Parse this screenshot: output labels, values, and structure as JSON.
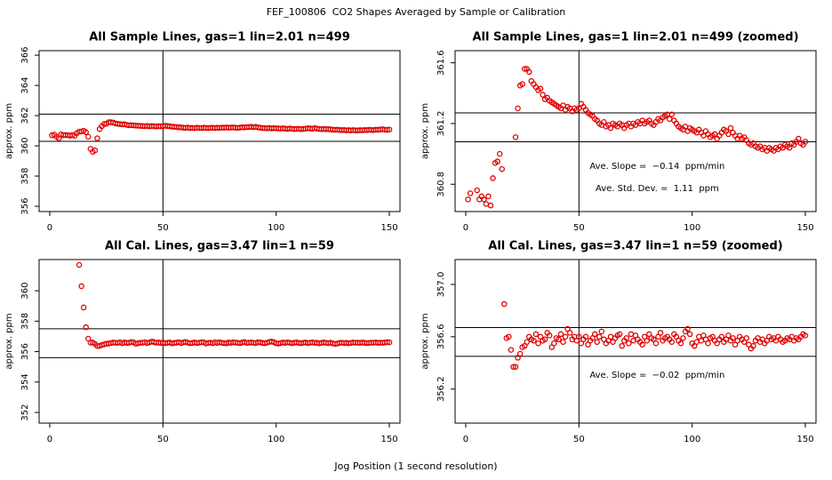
{
  "title": "FEF_100806  CO2 Shapes Averaged by Sample or Calibration",
  "xlabel": "Jog Position (1 second resolution)",
  "chart_data": [
    {
      "type": "scatter",
      "color": "#e00000",
      "xlim": [
        -4.7,
        154.7
      ],
      "xticks": [
        0,
        50,
        100,
        150
      ],
      "vline": 50,
      "x": [
        1,
        2,
        3,
        4,
        5,
        6,
        7,
        8,
        9,
        10,
        11,
        12,
        13,
        14,
        15,
        16,
        17,
        18,
        19,
        20,
        21,
        22,
        23,
        24,
        25,
        26,
        27,
        28,
        29,
        30,
        31,
        32,
        33,
        34,
        35,
        36,
        37,
        38,
        39,
        40,
        41,
        42,
        43,
        44,
        45,
        46,
        47,
        48,
        49,
        50,
        51,
        52,
        53,
        54,
        55,
        56,
        57,
        58,
        59,
        60,
        61,
        62,
        63,
        64,
        65,
        66,
        67,
        68,
        69,
        70,
        71,
        72,
        73,
        74,
        75,
        76,
        77,
        78,
        79,
        80,
        81,
        82,
        83,
        84,
        85,
        86,
        87,
        88,
        89,
        90,
        91,
        92,
        93,
        94,
        95,
        96,
        97,
        98,
        99,
        100,
        101,
        102,
        103,
        104,
        105,
        106,
        107,
        108,
        109,
        110,
        111,
        112,
        113,
        114,
        115,
        116,
        117,
        118,
        119,
        120,
        121,
        122,
        123,
        124,
        125,
        126,
        127,
        128,
        129,
        130,
        131,
        132,
        133,
        134,
        135,
        136,
        137,
        138,
        139,
        140,
        141,
        142,
        143,
        144,
        145,
        146,
        147,
        148,
        149,
        150
      ],
      "values": [
        360.7,
        360.74,
        360.6,
        360.5,
        360.76,
        360.7,
        360.72,
        360.7,
        360.67,
        360.72,
        360.66,
        360.84,
        360.94,
        360.95,
        361.0,
        360.9,
        360.6,
        359.8,
        359.6,
        359.7,
        360.5,
        361.11,
        361.3,
        361.45,
        361.46,
        361.56,
        361.56,
        361.54,
        361.48,
        361.46,
        361.44,
        361.42,
        361.43,
        361.39,
        361.36,
        361.37,
        361.35,
        361.34,
        361.33,
        361.32,
        361.31,
        361.3,
        361.32,
        361.29,
        361.31,
        361.3,
        361.28,
        361.3,
        361.29,
        361.3,
        361.33,
        361.31,
        361.29,
        361.27,
        361.26,
        361.25,
        361.23,
        361.22,
        361.2,
        361.19,
        361.21,
        361.18,
        361.19,
        361.17,
        361.2,
        361.19,
        361.18,
        361.2,
        361.19,
        361.17,
        361.19,
        361.2,
        361.18,
        361.2,
        361.19,
        361.21,
        361.2,
        361.22,
        361.2,
        361.21,
        361.22,
        361.2,
        361.19,
        361.21,
        361.23,
        361.22,
        361.24,
        361.25,
        361.26,
        361.23,
        361.26,
        361.22,
        361.2,
        361.18,
        361.17,
        361.16,
        361.18,
        361.15,
        361.17,
        361.16,
        361.15,
        361.14,
        361.16,
        361.14,
        361.12,
        361.15,
        361.13,
        361.11,
        361.12,
        361.13,
        361.1,
        361.12,
        361.14,
        361.16,
        361.15,
        361.13,
        361.17,
        361.14,
        361.12,
        361.1,
        361.12,
        361.1,
        361.11,
        361.09,
        361.07,
        361.06,
        361.07,
        361.05,
        361.04,
        361.05,
        361.03,
        361.04,
        361.02,
        361.04,
        361.03,
        361.02,
        361.04,
        361.03,
        361.05,
        361.04,
        361.06,
        361.05,
        361.04,
        361.07,
        361.06,
        361.08,
        361.1,
        361.07,
        361.06,
        361.08
      ],
      "views": [
        {
          "title": "All Sample Lines, gas=1 lin=2.01 n=499",
          "ylabel": "approx. ppm",
          "ylim": [
            355.65,
            366.3
          ],
          "yticks": [
            356,
            358,
            360,
            362,
            364,
            366
          ],
          "hlines": [
            362.1,
            360.3
          ]
        },
        {
          "title": "All Sample Lines, gas=1 lin=2.01 n=499 (zoomed)",
          "ylabel": "approx. ppm",
          "ylim": [
            360.62,
            361.68
          ],
          "yticks": [
            360.8,
            361.2,
            361.6
          ],
          "hlines": [
            361.27,
            361.08
          ],
          "annotations": [
            "Ave. Slope =  −0.14  ppm/min",
            "Ave. Std. Dev. =  1.11  ppm"
          ]
        }
      ]
    },
    {
      "type": "scatter",
      "color": "#e00000",
      "xlim": [
        -4.7,
        154.7
      ],
      "xticks": [
        0,
        50,
        100,
        150
      ],
      "vline": 50,
      "x": [
        13,
        14,
        15,
        16,
        17,
        18,
        19,
        20,
        21,
        22,
        23,
        24,
        25,
        26,
        27,
        28,
        29,
        30,
        31,
        32,
        33,
        34,
        35,
        36,
        37,
        38,
        39,
        40,
        41,
        42,
        43,
        44,
        45,
        46,
        47,
        48,
        49,
        50,
        51,
        52,
        53,
        54,
        55,
        56,
        57,
        58,
        59,
        60,
        61,
        62,
        63,
        64,
        65,
        66,
        67,
        68,
        69,
        70,
        71,
        72,
        73,
        74,
        75,
        76,
        77,
        78,
        79,
        80,
        81,
        82,
        83,
        84,
        85,
        86,
        87,
        88,
        89,
        90,
        91,
        92,
        93,
        94,
        95,
        96,
        97,
        98,
        99,
        100,
        101,
        102,
        103,
        104,
        105,
        106,
        107,
        108,
        109,
        110,
        111,
        112,
        113,
        114,
        115,
        116,
        117,
        118,
        119,
        120,
        121,
        122,
        123,
        124,
        125,
        126,
        127,
        128,
        129,
        130,
        131,
        132,
        133,
        134,
        135,
        136,
        137,
        138,
        139,
        140,
        141,
        142,
        143,
        144,
        145,
        146,
        147,
        148,
        149,
        150
      ],
      "values": [
        361.7,
        360.3,
        358.9,
        357.6,
        356.85,
        356.59,
        356.6,
        356.5,
        356.37,
        356.37,
        356.44,
        356.47,
        356.52,
        356.53,
        356.56,
        356.6,
        356.58,
        356.57,
        356.62,
        356.55,
        356.6,
        356.57,
        356.58,
        356.63,
        356.61,
        356.52,
        356.55,
        356.59,
        356.58,
        356.62,
        356.56,
        356.6,
        356.66,
        356.63,
        356.58,
        356.6,
        356.57,
        356.6,
        356.55,
        356.58,
        356.6,
        356.54,
        356.57,
        356.59,
        356.62,
        356.56,
        356.6,
        356.64,
        356.58,
        356.55,
        356.57,
        356.6,
        356.56,
        356.59,
        356.61,
        356.62,
        356.53,
        356.57,
        356.59,
        356.55,
        356.62,
        356.57,
        356.61,
        356.58,
        356.56,
        356.54,
        356.6,
        356.57,
        356.62,
        356.59,
        356.58,
        356.55,
        356.6,
        356.63,
        356.57,
        356.59,
        356.6,
        356.58,
        356.56,
        356.62,
        356.6,
        356.57,
        356.55,
        356.59,
        356.64,
        356.66,
        356.62,
        356.55,
        356.53,
        356.56,
        356.6,
        356.57,
        356.61,
        356.58,
        356.55,
        356.59,
        356.6,
        356.57,
        356.55,
        356.58,
        356.6,
        356.56,
        356.58,
        356.61,
        356.57,
        356.59,
        356.54,
        356.57,
        356.6,
        356.58,
        356.56,
        356.59,
        356.54,
        356.51,
        356.53,
        356.57,
        356.59,
        356.56,
        356.58,
        356.55,
        356.57,
        356.6,
        356.58,
        356.59,
        356.57,
        356.6,
        356.58,
        356.56,
        356.57,
        356.59,
        356.58,
        356.6,
        356.57,
        356.59,
        356.58,
        356.6,
        356.62,
        356.61
      ],
      "views": [
        {
          "title": "All Cal. Lines, gas=3.47 lin=1 n=59",
          "ylabel": "approx. ppm",
          "ylim": [
            351.3,
            362.05
          ],
          "yticks": [
            352,
            354,
            356,
            358,
            360
          ],
          "hlines": [
            357.5,
            355.6
          ]
        },
        {
          "title": "All Cal. Lines, gas=3.47 lin=1 n=59 (zoomed)",
          "ylabel": "approx. ppm",
          "ylim": [
            355.94,
            357.19
          ],
          "yticks": [
            356.2,
            356.6,
            {
              "value": 357,
              "label": "357.0"
            }
          ],
          "hlines": [
            356.67,
            356.45
          ],
          "annotations": [
            "Ave. Slope =  −0.02  ppm/min"
          ]
        }
      ]
    }
  ]
}
